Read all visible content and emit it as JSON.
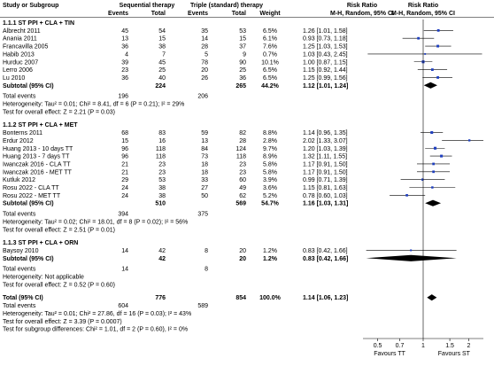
{
  "header": {
    "col_study": "Study or Subgroup",
    "group_seq": "Sequential therapy",
    "group_tt": "Triple (standard) therapy",
    "col_events": "Events",
    "col_total": "Total",
    "col_weight": "Weight",
    "rr_title": "Risk Ratio",
    "rr_sub": "M-H, Random, 95% CI"
  },
  "subgroups": [
    {
      "title": "1.1.1 ST PPI + CLA + TIN",
      "studies": [
        {
          "name": "Albrecht 2011",
          "e1": "45",
          "n1": "54",
          "e2": "35",
          "n2": "53",
          "weight": "6.5%",
          "ci": "1.26 [1.01, 1.58]",
          "rr": 1.26,
          "lo": 1.01,
          "hi": 1.58
        },
        {
          "name": "Anania 2011",
          "e1": "13",
          "n1": "15",
          "e2": "14",
          "n2": "15",
          "weight": "6.1%",
          "ci": "0.93 [0.73, 1.18]",
          "rr": 0.93,
          "lo": 0.73,
          "hi": 1.18
        },
        {
          "name": "Francavilla 2005",
          "e1": "36",
          "n1": "38",
          "e2": "28",
          "n2": "37",
          "weight": "7.6%",
          "ci": "1.25 [1.03, 1.53]",
          "rr": 1.25,
          "lo": 1.03,
          "hi": 1.53
        },
        {
          "name": "Habib 2013",
          "e1": "4",
          "n1": "7",
          "e2": "5",
          "n2": "9",
          "weight": "0.7%",
          "ci": "1.03 [0.43, 2.45]",
          "rr": 1.03,
          "lo": 0.43,
          "hi": 2.45
        },
        {
          "name": "Hurduc 2007",
          "e1": "39",
          "n1": "45",
          "e2": "78",
          "n2": "90",
          "weight": "10.1%",
          "ci": "1.00 [0.87, 1.15]",
          "rr": 1.0,
          "lo": 0.87,
          "hi": 1.15
        },
        {
          "name": "Lerro 2006",
          "e1": "23",
          "n1": "25",
          "e2": "20",
          "n2": "25",
          "weight": "6.5%",
          "ci": "1.15 [0.92, 1.44]",
          "rr": 1.15,
          "lo": 0.92,
          "hi": 1.44
        },
        {
          "name": "Lu 2010",
          "e1": "36",
          "n1": "40",
          "e2": "26",
          "n2": "36",
          "weight": "6.5%",
          "ci": "1.25 [0.99, 1.56]",
          "rr": 1.25,
          "lo": 0.99,
          "hi": 1.56
        }
      ],
      "subtotal": {
        "label": "Subtotal (95% CI)",
        "n1": "224",
        "n2": "265",
        "weight": "44.2%",
        "ci": "1.12 [1.01, 1.24]",
        "rr": 1.12,
        "lo": 1.01,
        "hi": 1.24
      },
      "total_events": {
        "label": "Total events",
        "e1": "196",
        "e2": "206"
      },
      "heterogeneity": "Heterogeneity: Tau² = 0.01; Chi² = 8.41, df = 6 (P = 0.21); I² = 29%",
      "overall": "Test for overall effect: Z = 2.21 (P = 0.03)"
    },
    {
      "title": "1.1.2 ST PPI + CLA + MET",
      "studies": [
        {
          "name": "Bonterns 2011",
          "e1": "68",
          "n1": "83",
          "e2": "59",
          "n2": "82",
          "weight": "8.8%",
          "ci": "1.14 [0.96, 1.35]",
          "rr": 1.14,
          "lo": 0.96,
          "hi": 1.35
        },
        {
          "name": "Erdur 2012",
          "e1": "15",
          "n1": "16",
          "e2": "13",
          "n2": "28",
          "weight": "2.8%",
          "ci": "2.02 [1.33, 3.07]",
          "rr": 2.02,
          "lo": 1.33,
          "hi": 3.07
        },
        {
          "name": "Huang 2013 - 10 days TT",
          "e1": "96",
          "n1": "118",
          "e2": "84",
          "n2": "124",
          "weight": "9.7%",
          "ci": "1.20 [1.03, 1.39]",
          "rr": 1.2,
          "lo": 1.03,
          "hi": 1.39
        },
        {
          "name": "Huang 2013 - 7 days TT",
          "e1": "96",
          "n1": "118",
          "e2": "73",
          "n2": "118",
          "weight": "8.9%",
          "ci": "1.32 [1.11, 1.55]",
          "rr": 1.32,
          "lo": 1.11,
          "hi": 1.55
        },
        {
          "name": "Iwanczak 2016 - CLA TT",
          "e1": "21",
          "n1": "23",
          "e2": "18",
          "n2": "23",
          "weight": "5.8%",
          "ci": "1.17 [0.91, 1.50]",
          "rr": 1.17,
          "lo": 0.91,
          "hi": 1.5
        },
        {
          "name": "Iwanczak 2016 - MET TT",
          "e1": "21",
          "n1": "23",
          "e2": "18",
          "n2": "23",
          "weight": "5.8%",
          "ci": "1.17 [0.91, 1.50]",
          "rr": 1.17,
          "lo": 0.91,
          "hi": 1.5
        },
        {
          "name": "Kutluk 2012",
          "e1": "29",
          "n1": "53",
          "e2": "33",
          "n2": "60",
          "weight": "3.9%",
          "ci": "0.99 [0.71, 1.39]",
          "rr": 0.99,
          "lo": 0.71,
          "hi": 1.39
        },
        {
          "name": "Rosu 2022 - CLA TT",
          "e1": "24",
          "n1": "38",
          "e2": "27",
          "n2": "49",
          "weight": "3.6%",
          "ci": "1.15 [0.81, 1.63]",
          "rr": 1.15,
          "lo": 0.81,
          "hi": 1.63
        },
        {
          "name": "Rosu 2022 - MET TT",
          "e1": "24",
          "n1": "38",
          "e2": "50",
          "n2": "62",
          "weight": "5.2%",
          "ci": "0.78 [0.60, 1.03]",
          "rr": 0.78,
          "lo": 0.6,
          "hi": 1.03
        }
      ],
      "subtotal": {
        "label": "Subtotal (95% CI)",
        "n1": "510",
        "n2": "569",
        "weight": "54.7%",
        "ci": "1.16 [1.03, 1.31]",
        "rr": 1.16,
        "lo": 1.03,
        "hi": 1.31
      },
      "total_events": {
        "label": "Total events",
        "e1": "394",
        "e2": "375"
      },
      "heterogeneity": "Heterogeneity: Tau² = 0.02; Chi² = 18.01, df = 8 (P = 0.02); I² = 56%",
      "overall": "Test for overall effect: Z = 2.51 (P = 0.01)"
    },
    {
      "title": "1.1.3 ST PPI + CLA + ORN",
      "studies": [
        {
          "name": "Baysoy 2010",
          "e1": "14",
          "n1": "42",
          "e2": "8",
          "n2": "20",
          "weight": "1.2%",
          "ci": "0.83 [0.42, 1.66]",
          "rr": 0.83,
          "lo": 0.42,
          "hi": 1.66
        }
      ],
      "subtotal": {
        "label": "Subtotal (95% CI)",
        "n1": "42",
        "n2": "20",
        "weight": "1.2%",
        "ci": "0.83 [0.42, 1.66]",
        "rr": 0.83,
        "lo": 0.42,
        "hi": 1.66
      },
      "total_events": {
        "label": "Total events",
        "e1": "14",
        "e2": "8"
      },
      "heterogeneity": "Heterogeneity: Not applicable",
      "overall": "Test for overall effect: Z = 0.52 (P = 0.60)"
    }
  ],
  "total": {
    "label": "Total (95% CI)",
    "n1": "776",
    "n2": "854",
    "weight": "100.0%",
    "ci": "1.14 [1.06, 1.23]",
    "rr": 1.14,
    "lo": 1.06,
    "hi": 1.23,
    "events_label": "Total events",
    "e1": "604",
    "e2": "589",
    "heterogeneity": "Heterogeneity: Tau² = 0.01; Chi² = 27.86, df = 16 (P = 0.03); I² = 43%",
    "overall": "Test for overall effect: Z = 3.39 (P = 0.0007)",
    "subgroup_diff": "Test for subgroup differences: Chi² = 1.01, df = 2 (P = 0.60), I² = 0%"
  },
  "chart_data": {
    "type": "forest",
    "scale": "log",
    "xlim": [
      0.4,
      2.5
    ],
    "ticks": [
      "0.5",
      "0.7",
      "1",
      "1.5",
      "2"
    ],
    "tick_values": [
      0.5,
      0.7,
      1,
      1.5,
      2
    ],
    "favours_left": "Favours TT",
    "favours_right": "Favours ST",
    "marker_color": "#1f3fbf",
    "diamond_color": "#000000"
  }
}
